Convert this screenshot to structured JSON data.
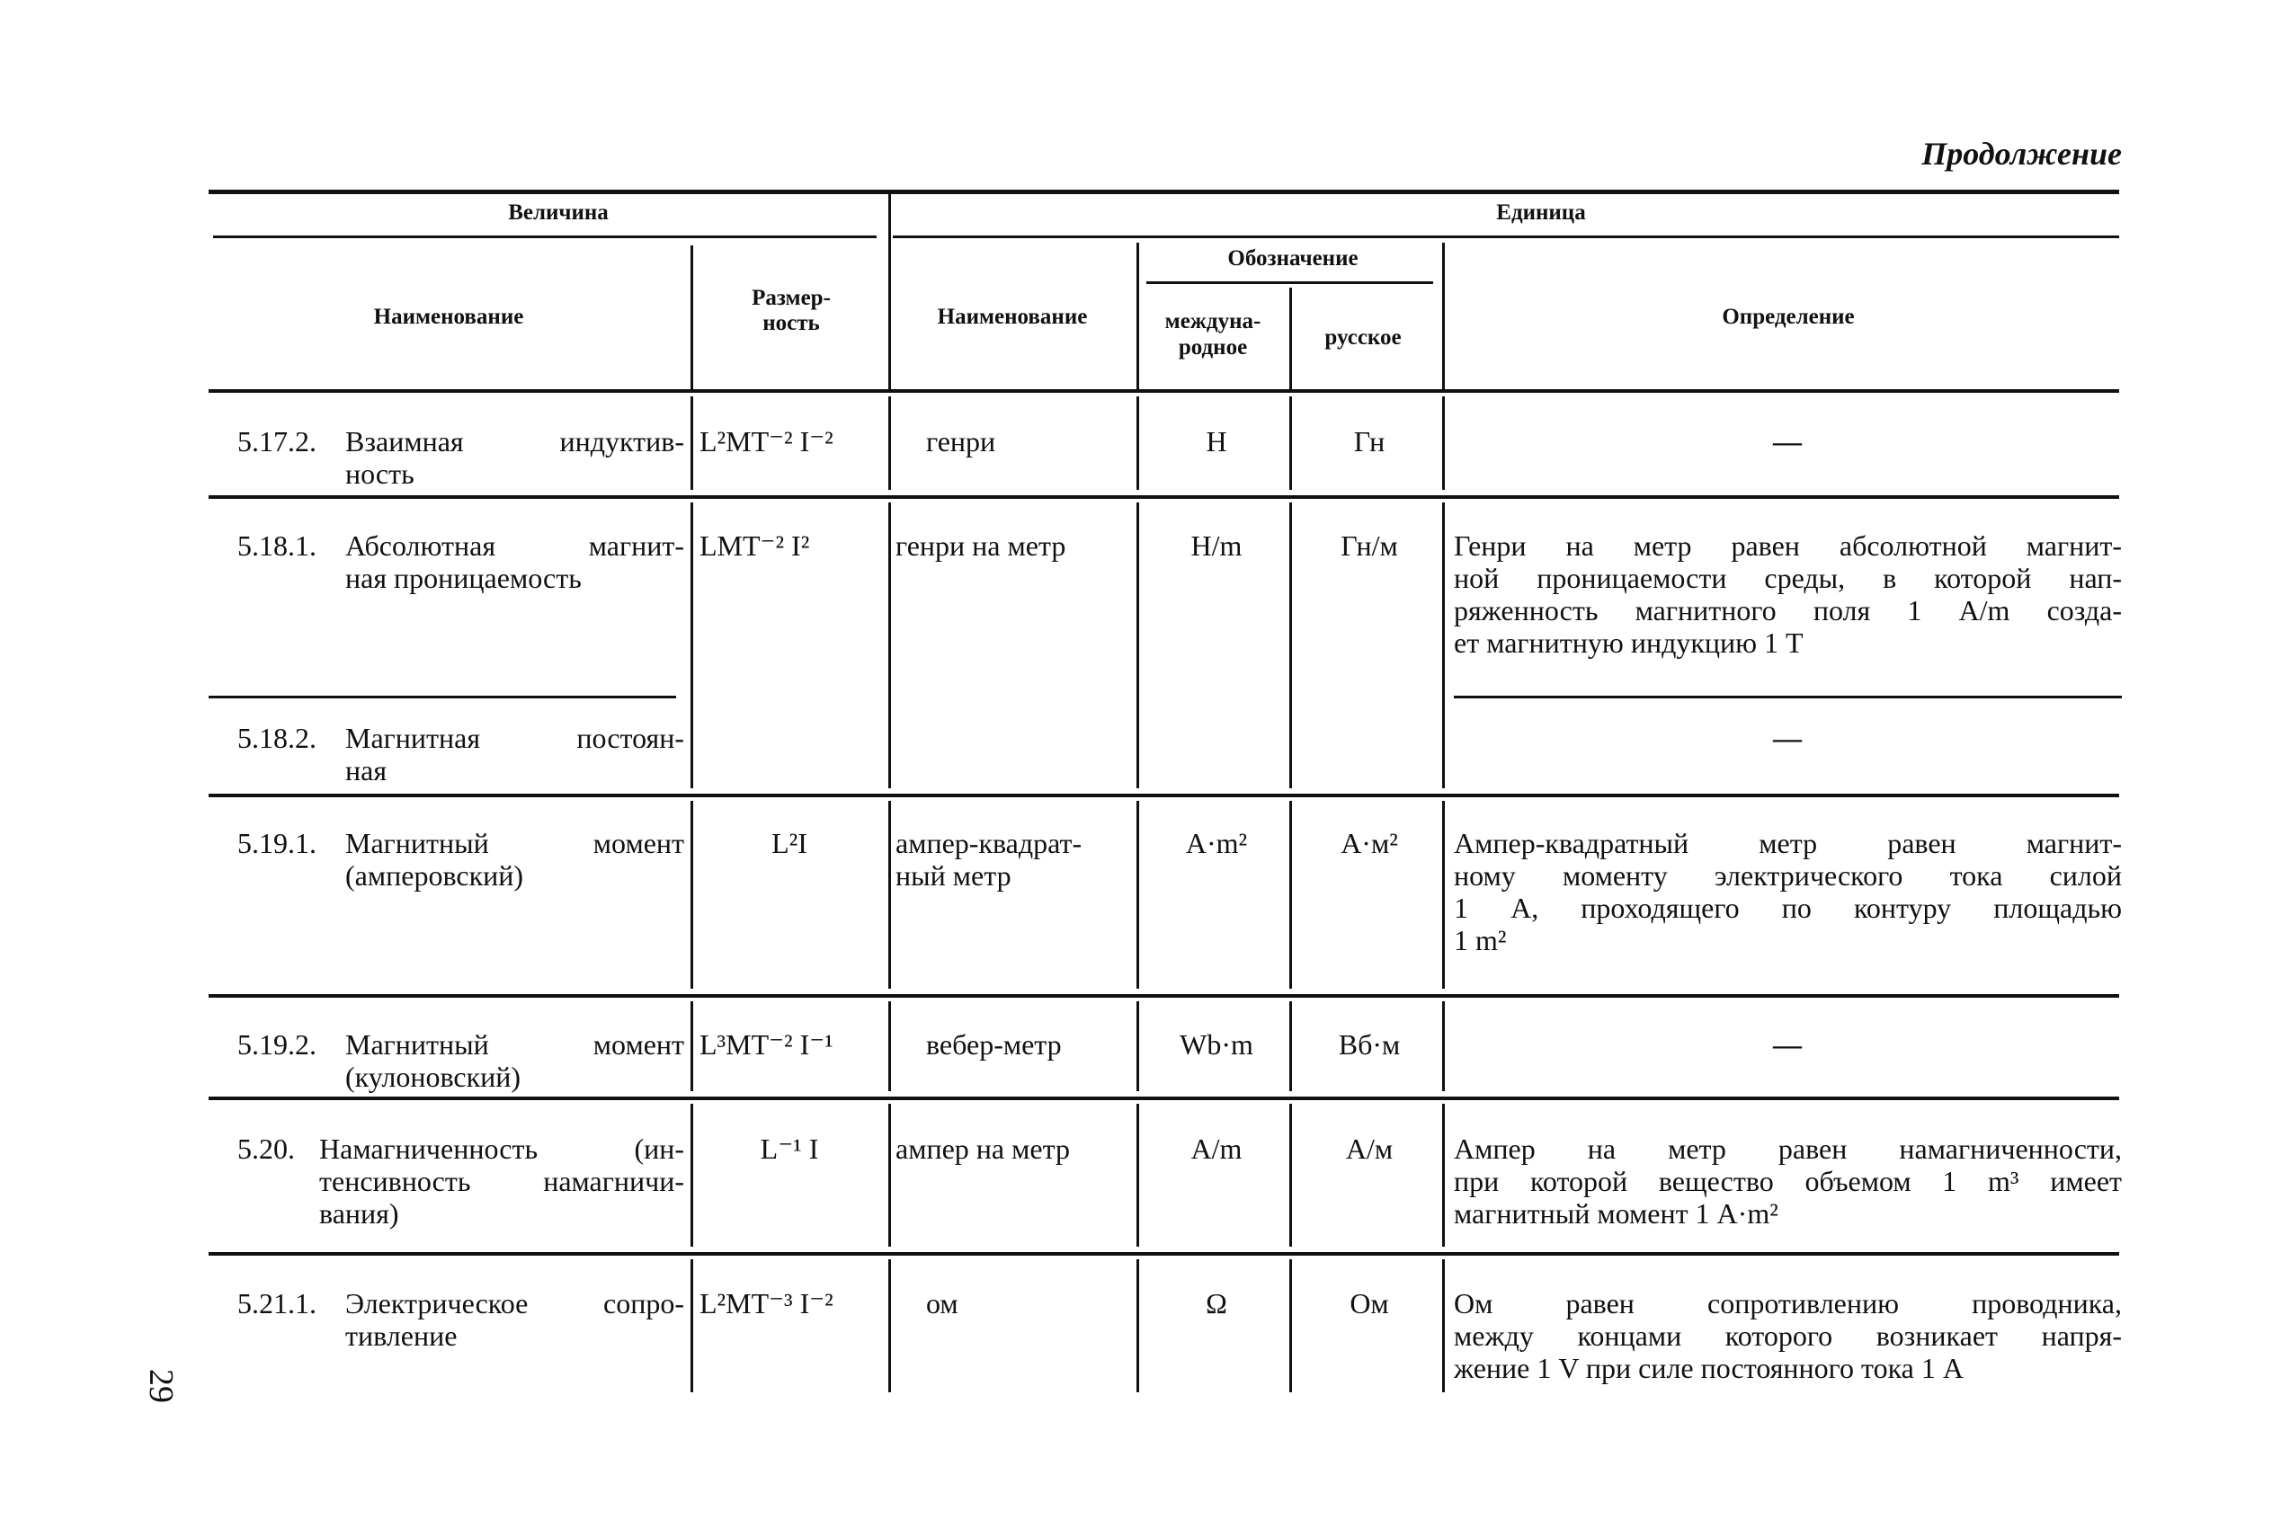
{
  "continuation_label": "Продолжение",
  "page_number": "29",
  "header": {
    "quantity_group": "Величина",
    "unit_group": "Единица",
    "quantity_name": "Наименование",
    "dimension_lines": [
      "Размер-",
      "ность"
    ],
    "unit_name": "Наименование",
    "symbol_group": "Обозначение",
    "symbol_intl_lines": [
      "междуна-",
      "родное"
    ],
    "symbol_ru": "русское",
    "definition": "Определение"
  },
  "rows": [
    {
      "num": "5.17.2.",
      "name": [
        "Взаимная индуктив-",
        "ность"
      ],
      "dim": "L²MT⁻² I⁻²",
      "unit": [
        "генри"
      ],
      "intl": "H",
      "ru": "Гн",
      "definition": [
        "—"
      ]
    },
    {
      "num": "5.18.1.",
      "name": [
        "Абсолютная магнит-",
        "ная проницаемость"
      ],
      "dim": "LMT⁻² I²",
      "unit": [
        "генри на метр"
      ],
      "intl": "H/m",
      "ru": "Гн/м",
      "definition": [
        "Генри на метр равен абсолютной магнит-",
        "ной проницаемости среды, в которой нап-",
        "ряженность магнитного поля 1 А/m созда-",
        "ет магнитную индукцию 1 Т"
      ]
    },
    {
      "num": "5.18.2.",
      "name": [
        "Магнитная постоян-",
        "ная"
      ],
      "definition": [
        "—"
      ]
    },
    {
      "num": "5.19.1.",
      "name": [
        "Магнитный момент",
        "(амперовский)"
      ],
      "dim": "L²I",
      "unit": [
        "ампер-квадрат-",
        "ный метр"
      ],
      "intl": "A·m²",
      "ru": "А·м²",
      "definition": [
        "Ампер-квадратный метр равен магнит-",
        "ному моменту электрического тока силой",
        "1 А, проходящего по контуру площадью",
        "1 m²"
      ]
    },
    {
      "num": "5.19.2.",
      "name": [
        "Магнитный момент",
        "(кулоновский)"
      ],
      "dim": "L³MT⁻² I⁻¹",
      "unit": [
        "вебер-метр"
      ],
      "intl": "Wb·m",
      "ru": "Вб·м",
      "definition": [
        "—"
      ]
    },
    {
      "num": "5.20.",
      "name": [
        "Намагниченность (ин-",
        "тенсивность намагничи-",
        "вания)"
      ],
      "dim": "L⁻¹ I",
      "unit": [
        "ампер на метр"
      ],
      "intl": "A/m",
      "ru": "А/м",
      "definition": [
        "Ампер на метр равен намагниченности,",
        "при которой вещество объемом 1 m³ имеет",
        "магнитный момент 1 А·m²"
      ]
    },
    {
      "num": "5.21.1.",
      "name": [
        "Электрическое сопро-",
        "тивление"
      ],
      "dim": "L²MT⁻³ I⁻²",
      "unit": [
        "ом"
      ],
      "intl": "Ω",
      "ru": "Ом",
      "definition": [
        "Ом равен сопротивлению проводника,",
        "между концами которого возникает напря-",
        "жение 1 V при силе постоянного тока 1 А"
      ]
    }
  ]
}
